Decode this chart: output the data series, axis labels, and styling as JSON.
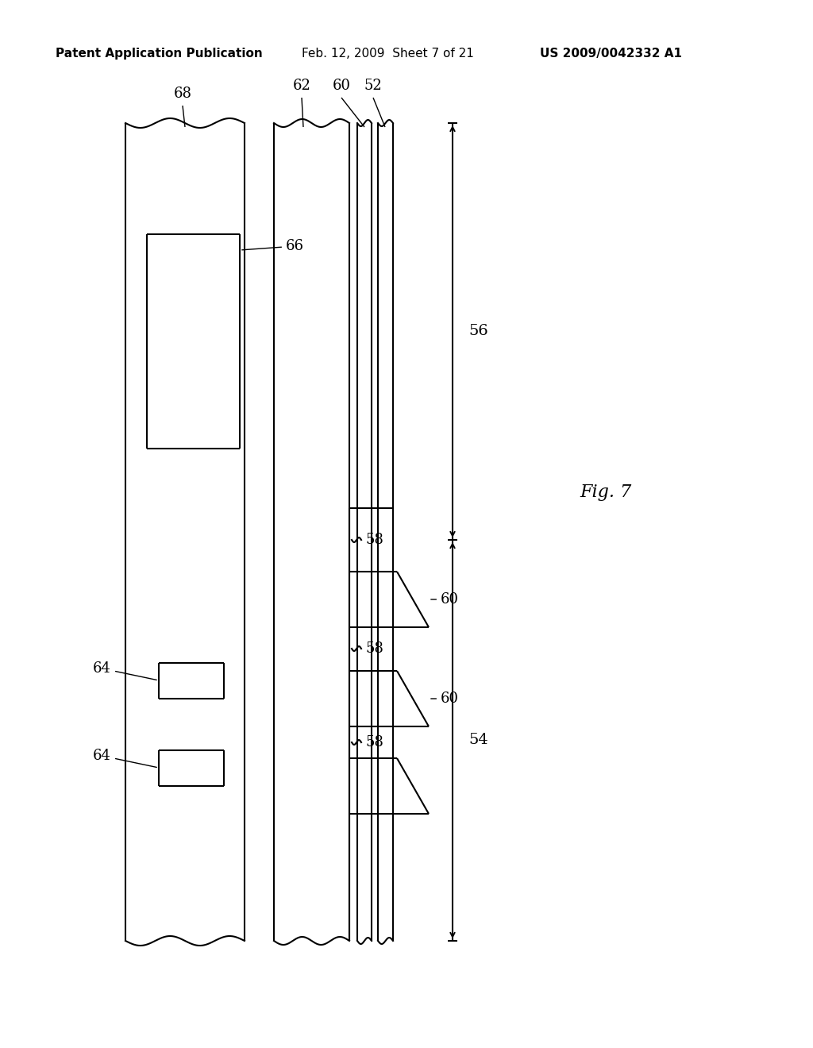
{
  "title_left": "Patent Application Publication",
  "title_mid": "Feb. 12, 2009  Sheet 7 of 21",
  "title_right": "US 2009/0042332 A1",
  "fig_label": "Fig. 7",
  "background_color": "#ffffff",
  "line_color": "#000000"
}
